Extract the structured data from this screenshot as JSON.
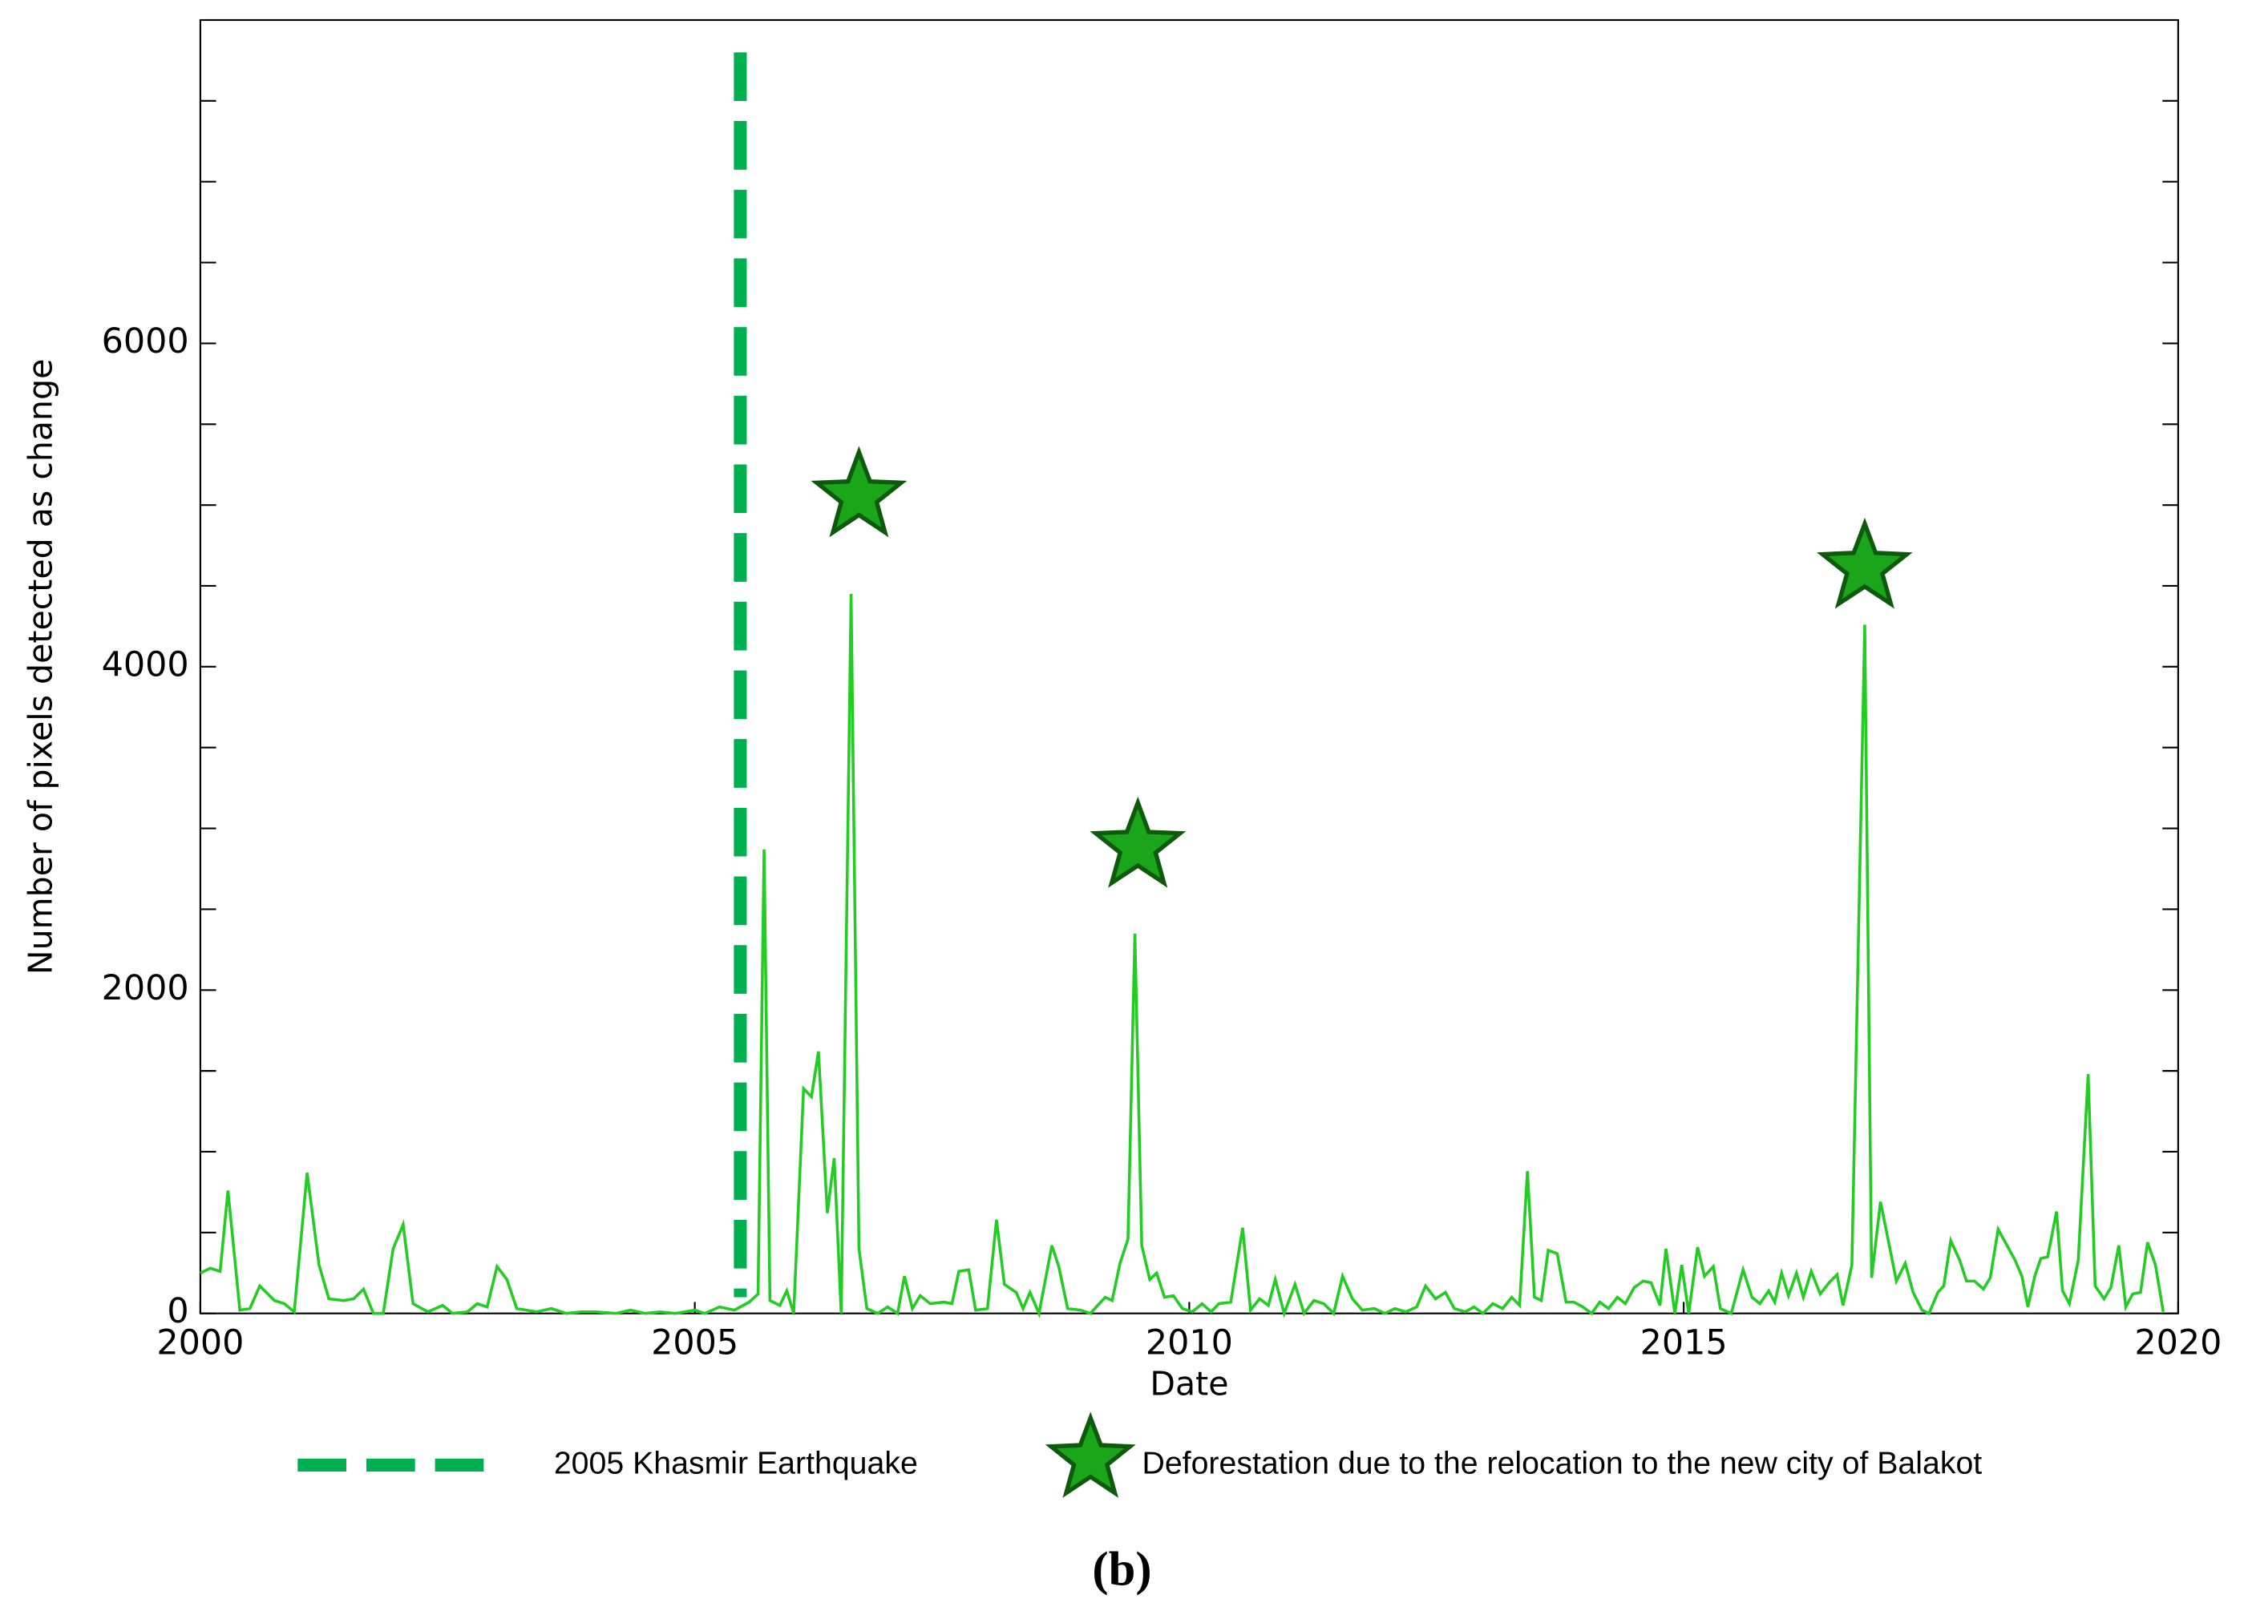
{
  "chart_data": {
    "type": "line",
    "xlabel": "Date",
    "ylabel": "Number of pixels detected as change",
    "caption": "(b)",
    "xlim": [
      2000,
      2020
    ],
    "xticks": [
      2000,
      2005,
      2010,
      2015,
      2020
    ],
    "ylim": [
      0,
      8000
    ],
    "yticks": [
      0,
      2000,
      4000,
      6000
    ],
    "minor_yticks": [
      500,
      1000,
      1500,
      2500,
      3000,
      3500,
      4500,
      5000,
      5500,
      6500,
      7000,
      7500
    ],
    "series": [
      {
        "color": "#22cc22",
        "x": [
          2000.0,
          2000.1,
          2000.2,
          2000.28,
          2000.4,
          2000.5,
          2000.6,
          2000.75,
          2000.85,
          2000.95,
          2001.08,
          2001.2,
          2001.3,
          2001.45,
          2001.55,
          2001.65,
          2001.75,
          2001.85,
          2001.95,
          2002.05,
          2002.15,
          2002.3,
          2002.45,
          2002.55,
          2002.7,
          2002.8,
          2002.9,
          2003.0,
          2003.1,
          2003.2,
          2003.4,
          2003.55,
          2003.7,
          2003.85,
          2004.0,
          2004.2,
          2004.35,
          2004.5,
          2004.65,
          2004.8,
          2005.0,
          2005.1,
          2005.25,
          2005.4,
          2005.55,
          2005.64,
          2005.7,
          2005.76,
          2005.86,
          2005.93,
          2006.0,
          2006.1,
          2006.18,
          2006.25,
          2006.34,
          2006.41,
          2006.48,
          2006.58,
          2006.66,
          2006.74,
          2006.85,
          2006.95,
          2007.05,
          2007.12,
          2007.2,
          2007.28,
          2007.38,
          2007.52,
          2007.6,
          2007.67,
          2007.77,
          2007.84,
          2007.96,
          2008.05,
          2008.13,
          2008.25,
          2008.32,
          2008.39,
          2008.48,
          2008.61,
          2008.68,
          2008.77,
          2008.9,
          2009.0,
          2009.09,
          2009.15,
          2009.22,
          2009.3,
          2009.38,
          2009.45,
          2009.52,
          2009.6,
          2009.67,
          2009.75,
          2009.84,
          2009.93,
          2010.03,
          2010.13,
          2010.22,
          2010.3,
          2010.42,
          2010.54,
          2010.62,
          2010.71,
          2010.8,
          2010.87,
          2010.96,
          2011.07,
          2011.16,
          2011.26,
          2011.36,
          2011.46,
          2011.55,
          2011.65,
          2011.75,
          2011.87,
          2011.98,
          2012.08,
          2012.19,
          2012.3,
          2012.39,
          2012.49,
          2012.59,
          2012.68,
          2012.79,
          2012.88,
          2012.97,
          2013.07,
          2013.17,
          2013.26,
          2013.34,
          2013.42,
          2013.49,
          2013.56,
          2013.63,
          2013.72,
          2013.81,
          2013.89,
          2013.98,
          2014.07,
          2014.15,
          2014.24,
          2014.33,
          2014.41,
          2014.5,
          2014.59,
          2014.67,
          2014.76,
          2014.82,
          2014.91,
          2014.98,
          2015.05,
          2015.14,
          2015.21,
          2015.3,
          2015.37,
          2015.48,
          2015.6,
          2015.69,
          2015.77,
          2015.86,
          2015.92,
          2015.99,
          2016.06,
          2016.14,
          2016.21,
          2016.29,
          2016.38,
          2016.47,
          2016.55,
          2016.61,
          2016.7,
          2016.83,
          2016.9,
          2016.99,
          2017.06,
          2017.15,
          2017.24,
          2017.32,
          2017.41,
          2017.48,
          2017.57,
          2017.63,
          2017.7,
          2017.79,
          2017.86,
          2017.94,
          2018.03,
          2018.1,
          2018.18,
          2018.26,
          2018.35,
          2018.42,
          2018.48,
          2018.55,
          2018.61,
          2018.68,
          2018.77,
          2018.83,
          2018.9,
          2018.99,
          2019.09,
          2019.16,
          2019.25,
          2019.32,
          2019.4,
          2019.47,
          2019.54,
          2019.62,
          2019.69,
          2019.77,
          2019.85
        ],
        "values": [
          250,
          280,
          260,
          760,
          20,
          30,
          170,
          80,
          60,
          10,
          870,
          300,
          90,
          80,
          90,
          150,
          0,
          0,
          400,
          550,
          60,
          10,
          50,
          0,
          10,
          60,
          40,
          290,
          210,
          30,
          10,
          30,
          0,
          10,
          10,
          0,
          20,
          0,
          10,
          0,
          20,
          0,
          40,
          20,
          70,
          120,
          2870,
          80,
          50,
          140,
          0,
          1390,
          1340,
          1620,
          620,
          960,
          0,
          4450,
          400,
          30,
          0,
          40,
          0,
          230,
          30,
          110,
          60,
          70,
          60,
          260,
          270,
          20,
          30,
          580,
          180,
          130,
          30,
          130,
          0,
          420,
          290,
          30,
          20,
          0,
          60,
          100,
          80,
          310,
          460,
          2350,
          420,
          210,
          250,
          100,
          110,
          30,
          10,
          60,
          10,
          60,
          70,
          530,
          20,
          90,
          50,
          210,
          0,
          180,
          0,
          80,
          60,
          0,
          230,
          90,
          20,
          30,
          0,
          30,
          10,
          40,
          170,
          90,
          130,
          30,
          10,
          40,
          0,
          60,
          30,
          100,
          50,
          880,
          100,
          80,
          390,
          370,
          70,
          70,
          40,
          0,
          70,
          30,
          100,
          60,
          160,
          200,
          190,
          50,
          400,
          0,
          300,
          0,
          410,
          230,
          290,
          30,
          0,
          270,
          100,
          60,
          140,
          70,
          250,
          110,
          250,
          100,
          260,
          120,
          190,
          240,
          50,
          300,
          4260,
          220,
          690,
          480,
          200,
          310,
          130,
          20,
          0,
          130,
          170,
          450,
          330,
          200,
          200,
          150,
          220,
          520,
          430,
          330,
          230,
          40,
          230,
          340,
          350,
          630,
          140,
          60,
          330,
          1480,
          170,
          90,
          160,
          420,
          40,
          120,
          130,
          440,
          300,
          10
        ]
      }
    ],
    "vlines": [
      {
        "name": "2005 Khasmir Earthquake",
        "x": 2005.46,
        "color": "#00b050"
      }
    ],
    "markers": [
      {
        "name": "Deforestation due to the relocation to the new city of Balakot",
        "color": "#1aa51a",
        "edge_color": "#0d5a0d",
        "x": [
          2006.66,
          2009.48,
          2016.83
        ],
        "values": [
          5053,
          2885,
          4611
        ]
      }
    ]
  }
}
